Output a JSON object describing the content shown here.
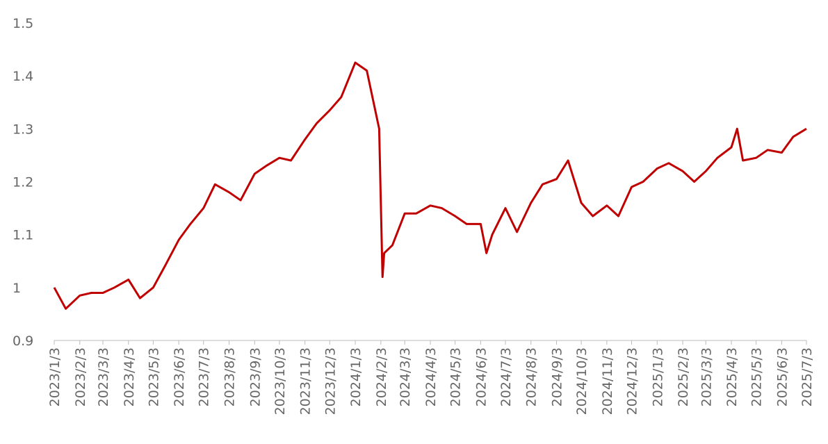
{
  "chart_data": {
    "type": "line",
    "x": [
      "2023/1/3",
      "2023/1/17",
      "2023/2/3",
      "2023/2/17",
      "2023/3/3",
      "2023/3/17",
      "2023/4/3",
      "2023/4/17",
      "2023/5/3",
      "2023/5/17",
      "2023/6/3",
      "2023/6/17",
      "2023/7/3",
      "2023/7/17",
      "2023/8/3",
      "2023/8/17",
      "2023/9/3",
      "2023/9/17",
      "2023/10/3",
      "2023/10/17",
      "2023/11/3",
      "2023/11/17",
      "2023/12/3",
      "2023/12/17",
      "2024/1/3",
      "2024/1/17",
      "2024/2/1",
      "2024/2/5",
      "2024/2/7",
      "2024/2/17",
      "2024/3/3",
      "2024/3/17",
      "2024/4/3",
      "2024/4/17",
      "2024/5/3",
      "2024/5/17",
      "2024/6/3",
      "2024/6/10",
      "2024/6/17",
      "2024/7/3",
      "2024/7/17",
      "2024/8/3",
      "2024/8/17",
      "2024/9/3",
      "2024/9/17",
      "2024/10/3",
      "2024/10/17",
      "2024/11/3",
      "2024/11/17",
      "2024/12/3",
      "2024/12/17",
      "2025/1/3",
      "2025/1/17",
      "2025/2/3",
      "2025/2/17",
      "2025/3/3",
      "2025/3/17",
      "2025/4/3",
      "2025/4/10",
      "2025/4/17",
      "2025/5/3",
      "2025/5/17",
      "2025/6/3",
      "2025/6/17",
      "2025/7/3"
    ],
    "series": [
      {
        "color": "#c00000",
        "values": [
          1.0,
          0.96,
          0.985,
          0.99,
          0.99,
          1.0,
          1.015,
          0.98,
          1.0,
          1.04,
          1.09,
          1.12,
          1.15,
          1.195,
          1.18,
          1.165,
          1.215,
          1.23,
          1.245,
          1.24,
          1.28,
          1.31,
          1.335,
          1.36,
          1.425,
          1.41,
          1.3,
          1.02,
          1.065,
          1.08,
          1.14,
          1.14,
          1.155,
          1.15,
          1.135,
          1.12,
          1.12,
          1.065,
          1.1,
          1.15,
          1.105,
          1.16,
          1.195,
          1.205,
          1.24,
          1.16,
          1.135,
          1.155,
          1.135,
          1.19,
          1.2,
          1.225,
          1.235,
          1.22,
          1.2,
          1.22,
          1.245,
          1.265,
          1.3,
          1.24,
          1.245,
          1.26,
          1.255,
          1.285,
          1.3
        ]
      }
    ],
    "xlim": [
      "2023/1/3",
      "2025/7/3"
    ],
    "xticks": [
      "2023/1/3",
      "2023/2/3",
      "2023/3/3",
      "2023/4/3",
      "2023/5/3",
      "2023/6/3",
      "2023/7/3",
      "2023/8/3",
      "2023/9/3",
      "2023/10/3",
      "2023/11/3",
      "2023/12/3",
      "2024/1/3",
      "2024/2/3",
      "2024/3/3",
      "2024/4/3",
      "2024/5/3",
      "2024/6/3",
      "2024/7/3",
      "2024/8/3",
      "2024/9/3",
      "2024/10/3",
      "2024/11/3",
      "2024/12/3",
      "2025/1/3",
      "2025/2/3",
      "2025/3/3",
      "2025/4/3",
      "2025/5/3",
      "2025/6/3",
      "2025/7/3"
    ],
    "ylim": [
      0.9,
      1.5
    ],
    "yticks": [
      0.9,
      1,
      1.1,
      1.2,
      1.3,
      1.4,
      1.5
    ],
    "grid": false
  }
}
